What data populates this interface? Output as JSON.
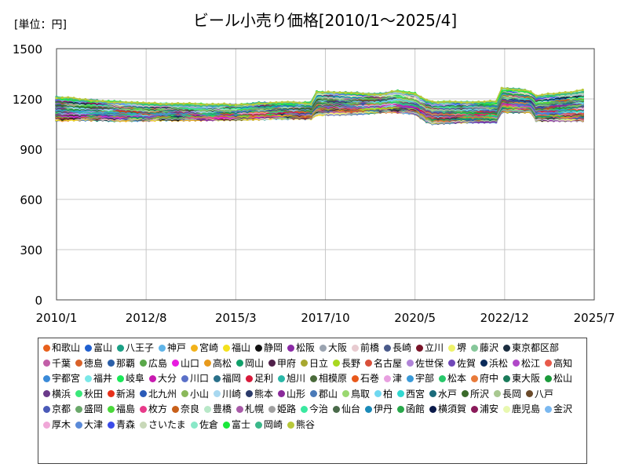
{
  "chart_data": {
    "type": "line",
    "title": "ビール小売り価格[2010/1～2025/4]",
    "unit_label": "[単位：円]",
    "xlabel": "",
    "ylabel": "",
    "ylim": [
      0,
      1500
    ],
    "yticks": [
      "0",
      "300",
      "600",
      "900",
      "1200",
      "1500"
    ],
    "xlim": [
      "2010-01",
      "2025-07"
    ],
    "xticks": [
      {
        "label": "2010/1",
        "date": "2010-01"
      },
      {
        "label": "2012/8",
        "date": "2012-08"
      },
      {
        "label": "2015/3",
        "date": "2015-03"
      },
      {
        "label": "2017/10",
        "date": "2017-10"
      },
      {
        "label": "2020/5",
        "date": "2020-05"
      },
      {
        "label": "2022/12",
        "date": "2022-12"
      },
      {
        "label": "2025/7",
        "date": "2025-07"
      }
    ],
    "grid": true,
    "legend_position": "bottom",
    "series_envelope": {
      "x": [
        "2010-01",
        "2012-08",
        "2015-03",
        "2016-06",
        "2017-05",
        "2017-07",
        "2018-10",
        "2019-06",
        "2019-10",
        "2020-05",
        "2020-10",
        "2021-10",
        "2022-09",
        "2022-10",
        "2023-09",
        "2023-10",
        "2025-04"
      ],
      "low": [
        1065,
        1070,
        1075,
        1080,
        1080,
        1100,
        1110,
        1120,
        1120,
        1110,
        1050,
        1060,
        1060,
        1120,
        1120,
        1070,
        1070
      ],
      "high": [
        1220,
        1180,
        1180,
        1190,
        1190,
        1260,
        1250,
        1250,
        1270,
        1240,
        1190,
        1200,
        1200,
        1280,
        1260,
        1230,
        1300
      ],
      "mid": [
        1140,
        1120,
        1120,
        1130,
        1130,
        1175,
        1170,
        1175,
        1185,
        1170,
        1115,
        1120,
        1120,
        1190,
        1180,
        1140,
        1150
      ]
    },
    "series": [
      {
        "name": "和歌山",
        "color": "#e8601c"
      },
      {
        "name": "富山",
        "color": "#1f5fcf"
      },
      {
        "name": "八王子",
        "color": "#1aa085"
      },
      {
        "name": "神戸",
        "color": "#5fb4e8"
      },
      {
        "name": "宮崎",
        "color": "#f2b21a"
      },
      {
        "name": "福山",
        "color": "#f4e11c"
      },
      {
        "name": "静岡",
        "color": "#111111"
      },
      {
        "name": "松阪",
        "color": "#8a2aa6"
      },
      {
        "name": "大阪",
        "color": "#9aa3b0"
      },
      {
        "name": "前橋",
        "color": "#e8cbd0"
      },
      {
        "name": "長崎",
        "color": "#4a5a8a"
      },
      {
        "name": "立川",
        "color": "#7a1428"
      },
      {
        "name": "堺",
        "color": "#eef26a"
      },
      {
        "name": "藤沢",
        "color": "#86c79a"
      },
      {
        "name": "東京都区部",
        "color": "#1c2e40"
      },
      {
        "name": "千葉",
        "color": "#c25ea8"
      },
      {
        "name": "徳島",
        "color": "#d9622a"
      },
      {
        "name": "那覇",
        "color": "#2b5fa8"
      },
      {
        "name": "広島",
        "color": "#5aa84a"
      },
      {
        "name": "山口",
        "color": "#e81ce0"
      },
      {
        "name": "高松",
        "color": "#e89a1c"
      },
      {
        "name": "岡山",
        "color": "#10a06a"
      },
      {
        "name": "甲府",
        "color": "#50204a"
      },
      {
        "name": "日立",
        "color": "#a8a830"
      },
      {
        "name": "長野",
        "color": "#a8d820"
      },
      {
        "name": "名古屋",
        "color": "#d8503a"
      },
      {
        "name": "佐世保",
        "color": "#b084d8"
      },
      {
        "name": "佐賀",
        "color": "#7048b8"
      },
      {
        "name": "浜松",
        "color": "#0a2a5a"
      },
      {
        "name": "松江",
        "color": "#b048c8"
      },
      {
        "name": "高知",
        "color": "#e85a4a"
      },
      {
        "name": "宇都宮",
        "color": "#3a8ad8"
      },
      {
        "name": "福井",
        "color": "#7ae8e8"
      },
      {
        "name": "岐阜",
        "color": "#1ae858"
      },
      {
        "name": "大分",
        "color": "#c81ab0"
      },
      {
        "name": "川口",
        "color": "#5a70c8"
      },
      {
        "name": "福岡",
        "color": "#2a708a"
      },
      {
        "name": "足利",
        "color": "#d81a3a"
      },
      {
        "name": "旭川",
        "color": "#2ab8a8"
      },
      {
        "name": "相模原",
        "color": "#4a6a3a"
      },
      {
        "name": "石巻",
        "color": "#e8581a"
      },
      {
        "name": "津",
        "color": "#e8a0e0"
      },
      {
        "name": "宇部",
        "color": "#3a9ad8"
      },
      {
        "name": "松本",
        "color": "#28c86a"
      },
      {
        "name": "府中",
        "color": "#e87a3a"
      },
      {
        "name": "東大阪",
        "color": "#1a7a5a"
      },
      {
        "name": "松山",
        "color": "#1a9a3a"
      },
      {
        "name": "横浜",
        "color": "#6a3a8a"
      },
      {
        "name": "秋田",
        "color": "#3ae87a"
      },
      {
        "name": "新潟",
        "color": "#e8301a"
      },
      {
        "name": "北九州",
        "color": "#2a5ab8"
      },
      {
        "name": "小山",
        "color": "#8ab85a"
      },
      {
        "name": "川崎",
        "color": "#a8d8f0"
      },
      {
        "name": "熊本",
        "color": "#2a3a6a"
      },
      {
        "name": "山形",
        "color": "#8a2a9a"
      },
      {
        "name": "郡山",
        "color": "#4a7ab8"
      },
      {
        "name": "鳥取",
        "color": "#9ad870"
      },
      {
        "name": "柏",
        "color": "#70d8f0"
      },
      {
        "name": "西宮",
        "color": "#30d8d0"
      },
      {
        "name": "水戸",
        "color": "#1a6a7a"
      },
      {
        "name": "所沢",
        "color": "#3a6a2a"
      },
      {
        "name": "長岡",
        "color": "#a8c890"
      },
      {
        "name": "八戸",
        "color": "#6a4a2a"
      },
      {
        "name": "京都",
        "color": "#4a5ab8"
      },
      {
        "name": "盛岡",
        "color": "#6aa86a"
      },
      {
        "name": "福島",
        "color": "#4ad83a"
      },
      {
        "name": "枚方",
        "color": "#e83a8a"
      },
      {
        "name": "奈良",
        "color": "#c8601a"
      },
      {
        "name": "豊橋",
        "color": "#b8e8c8"
      },
      {
        "name": "札幌",
        "color": "#a85aa8"
      },
      {
        "name": "姫路",
        "color": "#a0a0a0"
      },
      {
        "name": "今治",
        "color": "#3ae8a0"
      },
      {
        "name": "仙台",
        "color": "#4a6a4a"
      },
      {
        "name": "伊丹",
        "color": "#1a8ab8"
      },
      {
        "name": "函館",
        "color": "#28a84a"
      },
      {
        "name": "横須賀",
        "color": "#0a1a4a"
      },
      {
        "name": "浦安",
        "color": "#8a1a5a"
      },
      {
        "name": "鹿児島",
        "color": "#e8f8b0"
      },
      {
        "name": "金沢",
        "color": "#7ab8f0"
      },
      {
        "name": "厚木",
        "color": "#f0a8d8"
      },
      {
        "name": "大津",
        "color": "#5a8ad8"
      },
      {
        "name": "青森",
        "color": "#3a4ae8"
      },
      {
        "name": "さいたま",
        "color": "#c8d8b8"
      },
      {
        "name": "佐倉",
        "color": "#8ae8c8"
      },
      {
        "name": "富士",
        "color": "#1ae83a"
      },
      {
        "name": "岡崎",
        "color": "#3ab88a"
      },
      {
        "name": "熊谷",
        "color": "#b8c83a"
      }
    ]
  }
}
